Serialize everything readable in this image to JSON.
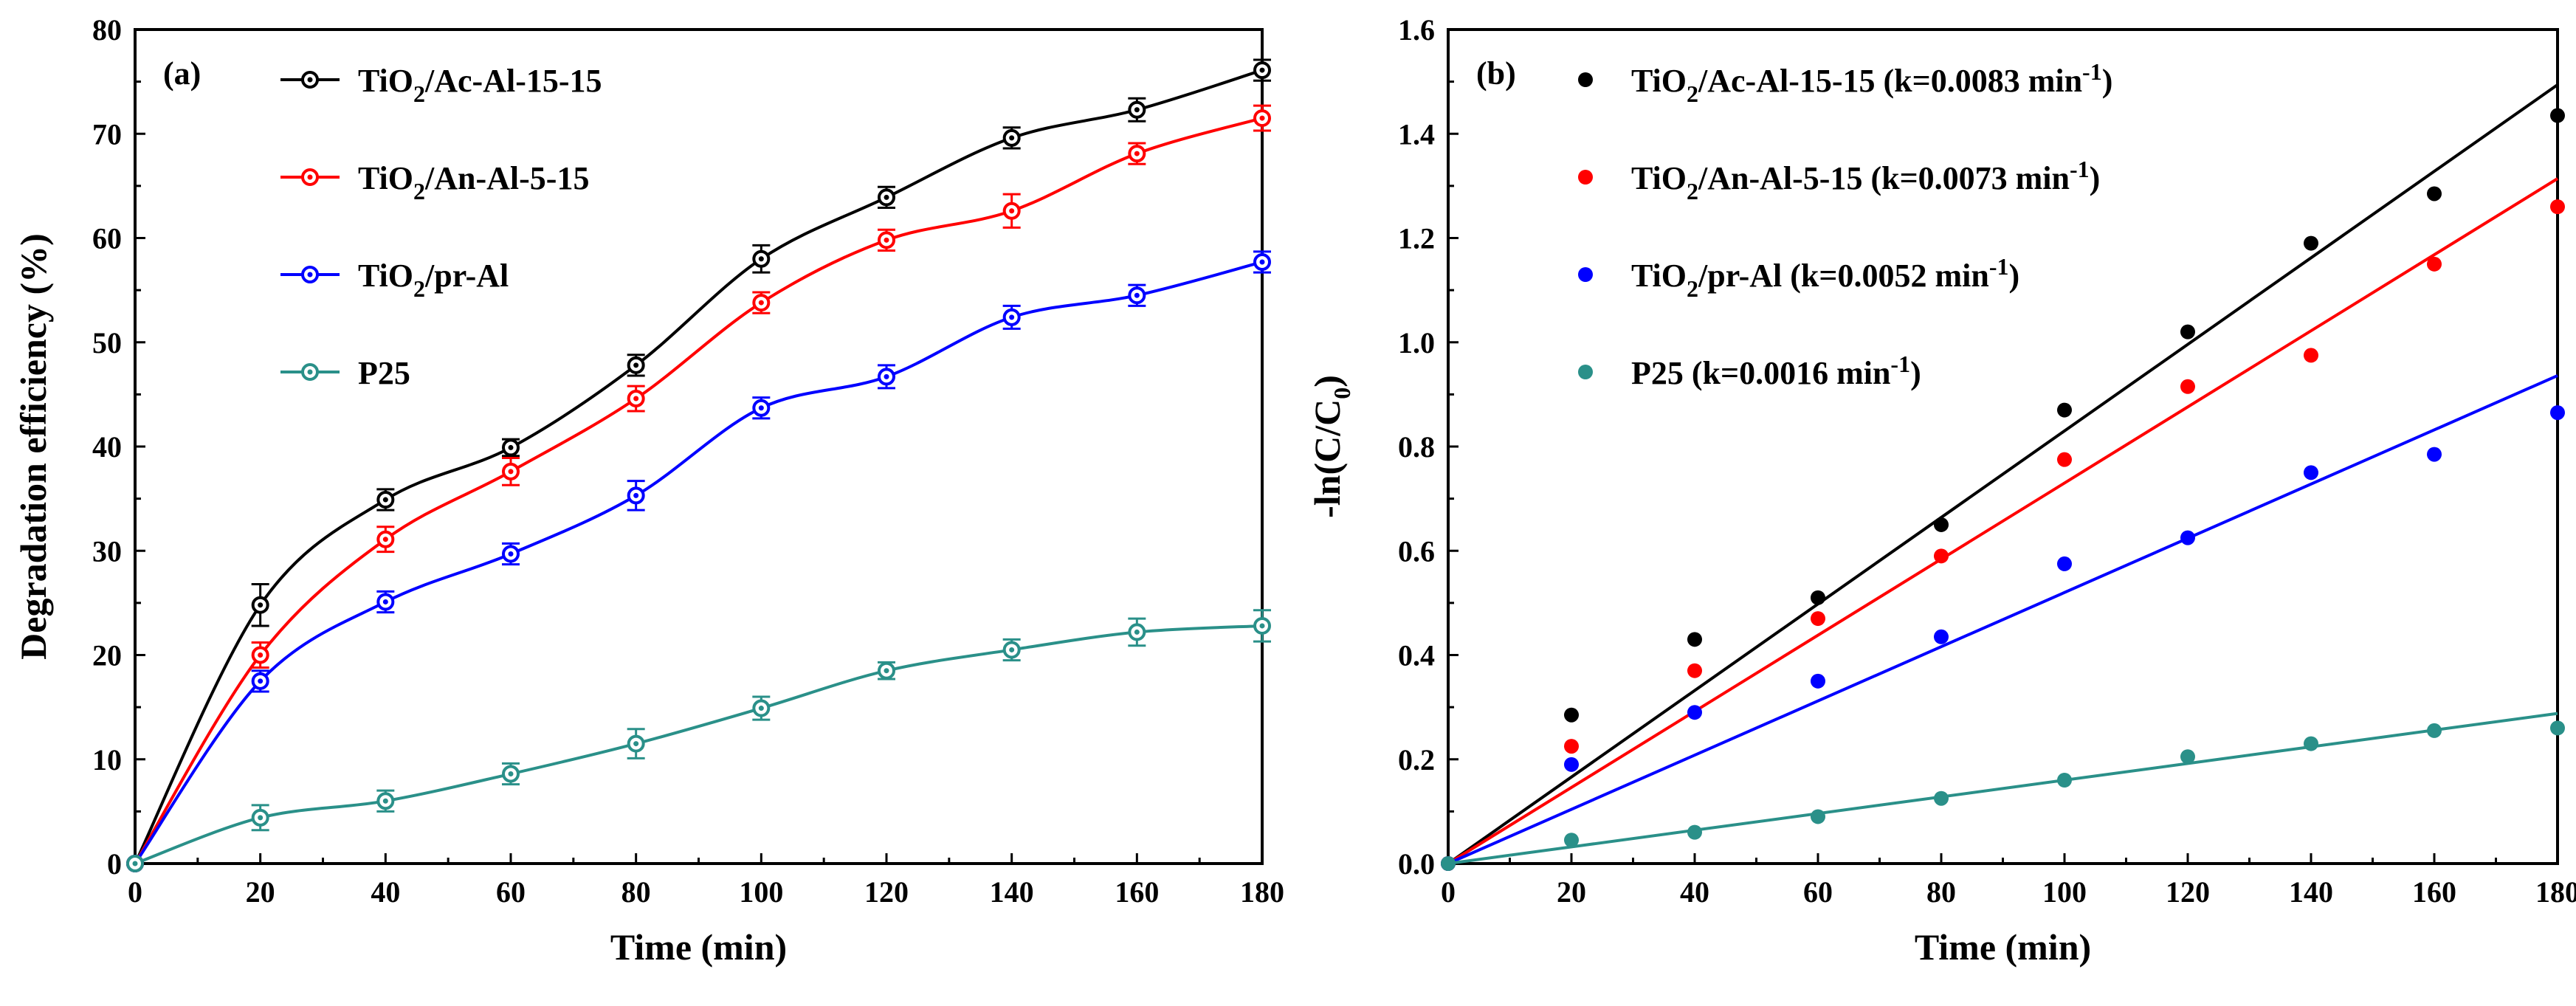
{
  "chart_data": [
    {
      "panel": "(a)",
      "type": "line",
      "xlabel": "Time (min)",
      "ylabel": "Degradation efficiency (%)",
      "xlim": [
        0,
        180
      ],
      "ylim": [
        0,
        80
      ],
      "xticks": [
        0,
        20,
        40,
        60,
        80,
        100,
        120,
        140,
        160,
        180
      ],
      "yticks": [
        0,
        10,
        20,
        30,
        40,
        50,
        60,
        70,
        80
      ],
      "x": [
        0,
        20,
        40,
        60,
        80,
        100,
        120,
        140,
        160,
        180
      ],
      "series": [
        {
          "name": "TiO2/Ac-Al-15-15",
          "legend": {
            "pre": "TiO",
            "sub": "2",
            "post": "/Ac-Al-15-15"
          },
          "color": "#000000",
          "values": [
            0,
            24.8,
            34.9,
            39.9,
            47.8,
            58.0,
            63.9,
            69.6,
            72.3,
            76.1
          ],
          "errors": [
            0,
            2.0,
            1.0,
            0.8,
            1.0,
            1.3,
            1.0,
            1.0,
            1.1,
            1.0
          ]
        },
        {
          "name": "TiO2/An-Al-5-15",
          "legend": {
            "pre": "TiO",
            "sub": "2",
            "post": "/An-Al-5-15"
          },
          "color": "#ff0000",
          "values": [
            0,
            20.0,
            31.1,
            37.6,
            44.6,
            53.8,
            59.8,
            62.6,
            68.1,
            71.5
          ],
          "errors": [
            0,
            1.2,
            1.2,
            1.3,
            1.2,
            1.0,
            1.0,
            1.6,
            1.0,
            1.2
          ]
        },
        {
          "name": "TiO2/pr-Al",
          "legend": {
            "pre": "TiO",
            "sub": "2",
            "post": "/pr-Al"
          },
          "color": "#0000ff",
          "values": [
            0,
            17.5,
            25.1,
            29.7,
            35.3,
            43.7,
            46.7,
            52.4,
            54.5,
            57.7
          ],
          "errors": [
            0,
            1.0,
            1.0,
            1.0,
            1.4,
            1.0,
            1.1,
            1.1,
            1.0,
            1.0
          ]
        },
        {
          "name": "P25",
          "legend": {
            "pre": "P25",
            "sub": "",
            "post": ""
          },
          "color": "#2a9089",
          "values": [
            0,
            4.4,
            6.0,
            8.6,
            11.5,
            14.9,
            18.5,
            20.5,
            22.2,
            22.8
          ],
          "errors": [
            0,
            1.2,
            1.0,
            1.0,
            1.4,
            1.1,
            0.8,
            1.0,
            1.3,
            1.5
          ]
        }
      ]
    },
    {
      "panel": "(b)",
      "type": "scatter",
      "xlabel": "Time (min)",
      "ylabel": {
        "pre": "-ln(C/C",
        "sub": "0",
        "post": ")"
      },
      "xlim": [
        0,
        180
      ],
      "ylim": [
        0,
        1.6
      ],
      "xticks": [
        0,
        20,
        40,
        60,
        80,
        100,
        120,
        140,
        160,
        180
      ],
      "yticks": [
        "0.0",
        "0.2",
        "0.4",
        "0.6",
        "0.8",
        "1.0",
        "1.2",
        "1.4",
        "1.6"
      ],
      "x": [
        0,
        20,
        40,
        60,
        80,
        100,
        120,
        140,
        160,
        180
      ],
      "series": [
        {
          "name": "TiO2/Ac-Al-15-15 (k=0.0083 min-1)",
          "color": "#000000",
          "k": 0.0083,
          "legend": {
            "pre": "TiO",
            "sub": "2",
            "mid": "/Ac-Al-15-15 (k=0.0083 min",
            "sup": "-1",
            "post": ")"
          },
          "values": [
            0,
            0.285,
            0.43,
            0.51,
            0.65,
            0.87,
            1.02,
            1.19,
            1.285,
            1.435
          ]
        },
        {
          "name": "TiO2/An-Al-5-15 (k=0.0073 min-1)",
          "color": "#ff0000",
          "k": 0.0073,
          "legend": {
            "pre": "TiO",
            "sub": "2",
            "mid": "/An-Al-5-15  (k=0.0073 min",
            "sup": "-1",
            "post": ")"
          },
          "values": [
            0,
            0.225,
            0.37,
            0.47,
            0.59,
            0.775,
            0.915,
            0.975,
            1.15,
            1.26
          ]
        },
        {
          "name": "TiO2/pr-Al (k=0.0052 min-1)",
          "color": "#0000ff",
          "k": 0.0052,
          "legend": {
            "pre": "TiO",
            "sub": "2",
            "mid": "/pr-Al  (k=0.0052 min",
            "sup": "-1",
            "post": ")"
          },
          "values": [
            0,
            0.19,
            0.29,
            0.35,
            0.435,
            0.575,
            0.625,
            0.75,
            0.785,
            0.865
          ]
        },
        {
          "name": "P25 (k=0.0016 min-1)",
          "color": "#2a9089",
          "k": 0.0016,
          "legend": {
            "pre": "P25  (k=0.0016 min",
            "sub": "",
            "mid": "",
            "sup": "-1",
            "post": ")"
          },
          "values": [
            0,
            0.045,
            0.06,
            0.09,
            0.125,
            0.16,
            0.205,
            0.23,
            0.255,
            0.26
          ]
        }
      ]
    }
  ]
}
